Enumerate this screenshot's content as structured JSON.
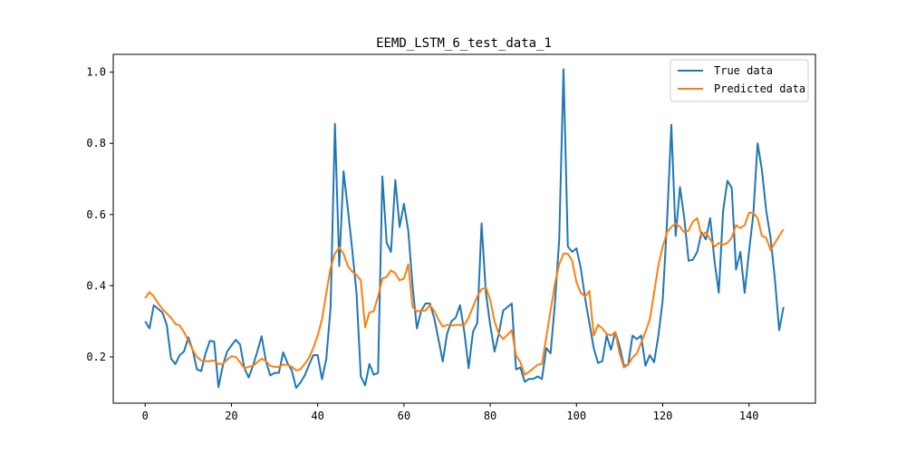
{
  "chart_data": {
    "type": "line",
    "title": "EEMD_LSTM_6_test_data_1",
    "xlabel": "",
    "ylabel": "",
    "xlim": [
      -7.4,
      155.4
    ],
    "ylim": [
      0.07,
      1.05
    ],
    "xticks": [
      0,
      20,
      40,
      60,
      80,
      100,
      120,
      140
    ],
    "yticks": [
      0.2,
      0.4,
      0.6,
      0.8,
      1.0
    ],
    "xtick_labels": [
      "0",
      "20",
      "40",
      "60",
      "80",
      "100",
      "120",
      "140"
    ],
    "ytick_labels": [
      "0.2",
      "0.4",
      "0.6",
      "0.8",
      "1.0"
    ],
    "grid": false,
    "legend_position": "top-right",
    "series": [
      {
        "name": "True data",
        "color": "#1f77b4",
        "x_start": 0,
        "values": [
          0.3,
          0.28,
          0.345,
          0.335,
          0.325,
          0.29,
          0.195,
          0.18,
          0.205,
          0.215,
          0.255,
          0.22,
          0.165,
          0.16,
          0.21,
          0.245,
          0.243,
          0.115,
          0.175,
          0.215,
          0.232,
          0.248,
          0.235,
          0.168,
          0.142,
          0.175,
          0.215,
          0.258,
          0.188,
          0.148,
          0.155,
          0.155,
          0.213,
          0.183,
          0.162,
          0.113,
          0.128,
          0.148,
          0.178,
          0.205,
          0.205,
          0.137,
          0.195,
          0.34,
          0.855,
          0.455,
          0.722,
          0.615,
          0.502,
          0.38,
          0.145,
          0.12,
          0.18,
          0.15,
          0.155,
          0.707,
          0.52,
          0.495,
          0.697,
          0.565,
          0.63,
          0.555,
          0.4,
          0.28,
          0.33,
          0.35,
          0.35,
          0.31,
          0.25,
          0.187,
          0.265,
          0.3,
          0.31,
          0.345,
          0.27,
          0.168,
          0.27,
          0.295,
          0.575,
          0.38,
          0.29,
          0.215,
          0.265,
          0.33,
          0.34,
          0.35,
          0.165,
          0.17,
          0.13,
          0.138,
          0.138,
          0.145,
          0.138,
          0.225,
          0.21,
          0.35,
          0.53,
          1.008,
          0.51,
          0.495,
          0.505,
          0.45,
          0.365,
          0.295,
          0.225,
          0.183,
          0.188,
          0.26,
          0.22,
          0.27,
          0.23,
          0.175,
          0.178,
          0.26,
          0.25,
          0.26,
          0.175,
          0.205,
          0.185,
          0.26,
          0.36,
          0.58,
          0.852,
          0.54,
          0.677,
          0.59,
          0.47,
          0.473,
          0.495,
          0.55,
          0.53,
          0.59,
          0.47,
          0.38,
          0.61,
          0.695,
          0.675,
          0.445,
          0.495,
          0.38,
          0.495,
          0.6,
          0.8,
          0.725,
          0.61,
          0.535,
          0.42,
          0.275,
          0.34
        ]
      },
      {
        "name": "Predicted data",
        "color": "#ff7f0e",
        "x_start": 0,
        "values": [
          0.365,
          0.382,
          0.37,
          0.35,
          0.335,
          0.322,
          0.31,
          0.293,
          0.288,
          0.27,
          0.245,
          0.22,
          0.2,
          0.19,
          0.188,
          0.188,
          0.19,
          0.18,
          0.18,
          0.192,
          0.202,
          0.2,
          0.185,
          0.168,
          0.172,
          0.175,
          0.185,
          0.195,
          0.188,
          0.175,
          0.172,
          0.172,
          0.178,
          0.178,
          0.172,
          0.162,
          0.165,
          0.18,
          0.198,
          0.225,
          0.26,
          0.305,
          0.38,
          0.45,
          0.49,
          0.508,
          0.49,
          0.455,
          0.44,
          0.43,
          0.415,
          0.283,
          0.325,
          0.328,
          0.37,
          0.42,
          0.425,
          0.443,
          0.435,
          0.415,
          0.42,
          0.46,
          0.34,
          0.328,
          0.33,
          0.33,
          0.345,
          0.33,
          0.305,
          0.285,
          0.29,
          0.288,
          0.29,
          0.29,
          0.29,
          0.31,
          0.34,
          0.37,
          0.39,
          0.395,
          0.36,
          0.3,
          0.265,
          0.25,
          0.262,
          0.275,
          0.205,
          0.185,
          0.15,
          0.158,
          0.168,
          0.178,
          0.18,
          0.255,
          0.33,
          0.405,
          0.46,
          0.49,
          0.49,
          0.47,
          0.41,
          0.38,
          0.37,
          0.385,
          0.26,
          0.29,
          0.28,
          0.265,
          0.26,
          0.27,
          0.21,
          0.17,
          0.178,
          0.198,
          0.21,
          0.24,
          0.27,
          0.305,
          0.38,
          0.458,
          0.51,
          0.55,
          0.565,
          0.575,
          0.565,
          0.55,
          0.555,
          0.58,
          0.59,
          0.54,
          0.55,
          0.53,
          0.51,
          0.52,
          0.515,
          0.52,
          0.535,
          0.57,
          0.562,
          0.57,
          0.605,
          0.605,
          0.59,
          0.54,
          0.535,
          0.5,
          0.52,
          0.54,
          0.558
        ]
      }
    ]
  }
}
